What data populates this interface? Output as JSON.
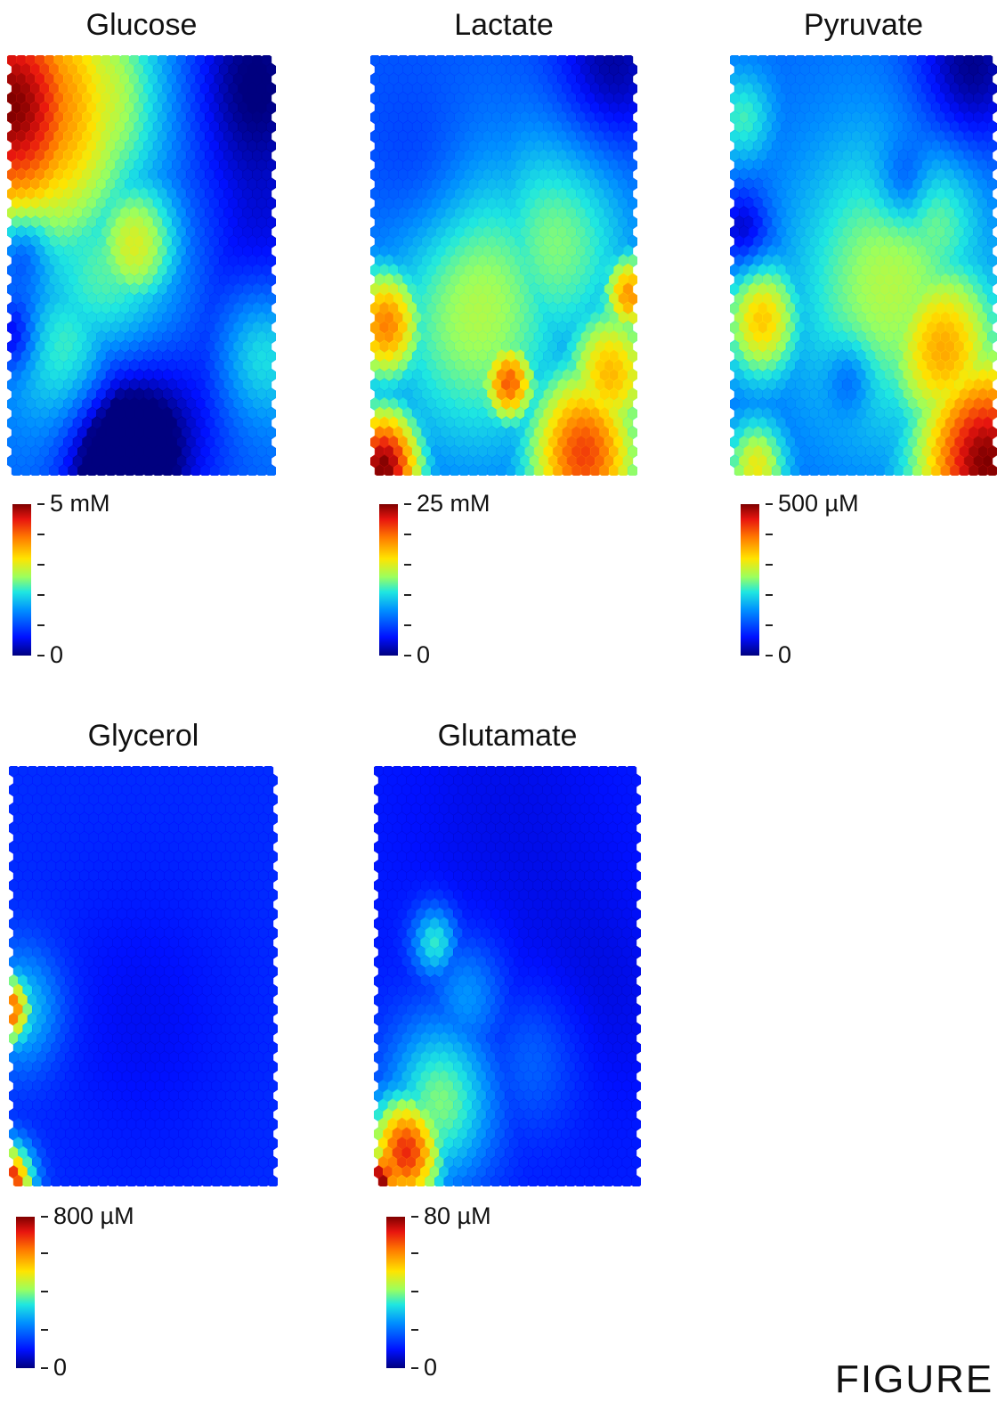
{
  "chart_data": [
    {
      "type": "heatmap",
      "title": "Glucose",
      "colorbar": {
        "max_label": "5 mM",
        "min_label": "0",
        "max": 5,
        "min": 0,
        "unit": "mM"
      },
      "hotspots": [
        {
          "u": 0.02,
          "v": 0.12,
          "val": 1.0,
          "sig": 0.22
        },
        {
          "u": 0.12,
          "v": 0.12,
          "val": 0.8,
          "sig": 0.25
        },
        {
          "u": 0.3,
          "v": 0.1,
          "val": 0.62,
          "sig": 0.2
        },
        {
          "u": 0.48,
          "v": 0.46,
          "val": 0.62,
          "sig": 0.12
        },
        {
          "u": 0.4,
          "v": 0.55,
          "val": 0.5,
          "sig": 0.2
        },
        {
          "u": 0.25,
          "v": 0.72,
          "val": 0.5,
          "sig": 0.15
        },
        {
          "u": 0.95,
          "v": 0.7,
          "val": 0.5,
          "sig": 0.12
        },
        {
          "u": 0.25,
          "v": 0.42,
          "val": 0.45,
          "sig": 0.2
        }
      ],
      "base": 0.25,
      "coldspots": [
        {
          "u": 0.92,
          "v": 0.05,
          "val": -0.25,
          "sig": 0.18
        },
        {
          "u": 0.95,
          "v": 0.5,
          "val": -0.15,
          "sig": 0.2
        },
        {
          "u": 0.5,
          "v": 0.9,
          "val": -0.3,
          "sig": 0.18
        },
        {
          "u": 0.4,
          "v": 0.99,
          "val": -0.3,
          "sig": 0.12
        },
        {
          "u": 0.05,
          "v": 0.47,
          "val": -0.2,
          "sig": 0.07
        },
        {
          "u": 0.02,
          "v": 0.67,
          "val": -0.2,
          "sig": 0.06
        }
      ]
    },
    {
      "type": "heatmap",
      "title": "Lactate",
      "colorbar": {
        "max_label": "25 mM",
        "min_label": "0",
        "max": 25,
        "min": 0,
        "unit": "mM"
      },
      "hotspots": [
        {
          "u": 0.06,
          "v": 0.64,
          "val": 0.78,
          "sig": 0.1
        },
        {
          "u": 0.52,
          "v": 0.78,
          "val": 0.82,
          "sig": 0.07
        },
        {
          "u": 0.97,
          "v": 0.57,
          "val": 0.75,
          "sig": 0.07
        },
        {
          "u": 0.05,
          "v": 0.98,
          "val": 1.0,
          "sig": 0.1
        },
        {
          "u": 0.8,
          "v": 0.95,
          "val": 0.85,
          "sig": 0.15
        },
        {
          "u": 0.9,
          "v": 0.76,
          "val": 0.7,
          "sig": 0.12
        },
        {
          "u": 0.4,
          "v": 0.6,
          "val": 0.55,
          "sig": 0.25
        },
        {
          "u": 0.7,
          "v": 0.45,
          "val": 0.5,
          "sig": 0.2
        }
      ],
      "base": 0.22,
      "coldspots": [
        {
          "u": 0.9,
          "v": 0.03,
          "val": -0.2,
          "sig": 0.15
        },
        {
          "u": 0.2,
          "v": 0.3,
          "val": -0.1,
          "sig": 0.15
        }
      ]
    },
    {
      "type": "heatmap",
      "title": "Pyruvate",
      "colorbar": {
        "max_label": "500 µM",
        "min_label": "0",
        "max": 500,
        "min": 0,
        "unit": "µM"
      },
      "hotspots": [
        {
          "u": 0.96,
          "v": 0.97,
          "val": 1.0,
          "sig": 0.18
        },
        {
          "u": 0.8,
          "v": 0.7,
          "val": 0.72,
          "sig": 0.15
        },
        {
          "u": 0.12,
          "v": 0.63,
          "val": 0.68,
          "sig": 0.1
        },
        {
          "u": 0.6,
          "v": 0.55,
          "val": 0.55,
          "sig": 0.25
        },
        {
          "u": 0.05,
          "v": 0.15,
          "val": 0.45,
          "sig": 0.08
        },
        {
          "u": 0.1,
          "v": 0.98,
          "val": 0.62,
          "sig": 0.08
        },
        {
          "u": 0.75,
          "v": 0.4,
          "val": 0.5,
          "sig": 0.15
        }
      ],
      "base": 0.25,
      "coldspots": [
        {
          "u": 0.9,
          "v": 0.03,
          "val": -0.25,
          "sig": 0.15
        },
        {
          "u": 0.65,
          "v": 0.3,
          "val": -0.15,
          "sig": 0.07
        },
        {
          "u": 0.45,
          "v": 0.77,
          "val": -0.15,
          "sig": 0.06
        },
        {
          "u": 0.05,
          "v": 0.42,
          "val": -0.2,
          "sig": 0.07
        }
      ]
    },
    {
      "type": "heatmap",
      "title": "Glycerol",
      "colorbar": {
        "max_label": "800 µM",
        "min_label": "0",
        "max": 800,
        "min": 0,
        "unit": "µM"
      },
      "hotspots": [
        {
          "u": 0.0,
          "v": 0.58,
          "val": 0.85,
          "sig": 0.06
        },
        {
          "u": 0.0,
          "v": 0.99,
          "val": 0.95,
          "sig": 0.06
        },
        {
          "u": 0.05,
          "v": 0.58,
          "val": 0.4,
          "sig": 0.1
        }
      ],
      "base": 0.16,
      "coldspots": [
        {
          "u": 0.5,
          "v": 0.6,
          "val": -0.05,
          "sig": 0.25
        }
      ]
    },
    {
      "type": "heatmap",
      "title": "Glutamate",
      "colorbar": {
        "max_label": "80 µM",
        "min_label": "0",
        "max": 80,
        "min": 0,
        "unit": "µM"
      },
      "hotspots": [
        {
          "u": 0.12,
          "v": 0.92,
          "val": 0.88,
          "sig": 0.1
        },
        {
          "u": 0.02,
          "v": 0.99,
          "val": 1.0,
          "sig": 0.06
        },
        {
          "u": 0.25,
          "v": 0.8,
          "val": 0.5,
          "sig": 0.14
        },
        {
          "u": 0.23,
          "v": 0.42,
          "val": 0.45,
          "sig": 0.06
        },
        {
          "u": 0.35,
          "v": 0.55,
          "val": 0.32,
          "sig": 0.1
        },
        {
          "u": 0.6,
          "v": 0.7,
          "val": 0.25,
          "sig": 0.12
        }
      ],
      "base": 0.14,
      "coldspots": [
        {
          "u": 0.5,
          "v": 0.12,
          "val": -0.04,
          "sig": 0.3
        },
        {
          "u": 0.85,
          "v": 0.55,
          "val": -0.04,
          "sig": 0.2
        }
      ]
    }
  ],
  "figure_label": "FIGURE"
}
